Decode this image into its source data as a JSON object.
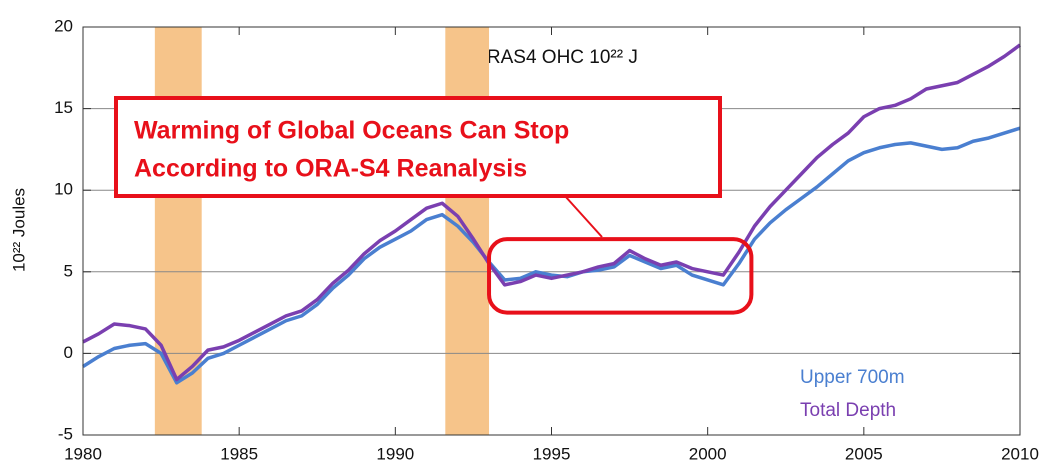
{
  "chart_data": {
    "type": "line",
    "title": "ORAS4  OHC 10²² J",
    "y_label": "10²² Joules",
    "annotation": [
      "Warming of Global Oceans Can Stop",
      "According to ORA-S4 Reanalysis"
    ],
    "x": [
      1980,
      1980.5,
      1981,
      1981.5,
      1982,
      1982.5,
      1983,
      1983.5,
      1984,
      1984.5,
      1985,
      1985.5,
      1986,
      1986.5,
      1987,
      1987.5,
      1988,
      1988.5,
      1989,
      1989.5,
      1990,
      1990.5,
      1991,
      1991.5,
      1992,
      1992.5,
      1993,
      1993.5,
      1994,
      1994.5,
      1995,
      1995.5,
      1996,
      1996.5,
      1997,
      1997.5,
      1998,
      1998.5,
      1999,
      1999.5,
      2000,
      2000.5,
      2001,
      2001.5,
      2002,
      2002.5,
      2003,
      2003.5,
      2004,
      2004.5,
      2005,
      2005.5,
      2006,
      2006.5,
      2007,
      2007.5,
      2008,
      2008.5,
      2009,
      2009.5,
      2010
    ],
    "series": [
      {
        "name": "Upper 700m",
        "color": "#4a7fd0",
        "values": [
          -0.8,
          -0.2,
          0.3,
          0.5,
          0.6,
          0.0,
          -1.8,
          -1.2,
          -0.3,
          0.0,
          0.5,
          1.0,
          1.5,
          2.0,
          2.3,
          3.0,
          4.0,
          4.8,
          5.8,
          6.5,
          7.0,
          7.5,
          8.2,
          8.5,
          7.8,
          6.8,
          5.6,
          4.5,
          4.6,
          5.0,
          4.8,
          4.7,
          5.0,
          5.1,
          5.3,
          6.0,
          5.6,
          5.2,
          5.4,
          4.8,
          4.5,
          4.2,
          5.5,
          7.0,
          8.0,
          8.8,
          9.5,
          10.2,
          11.0,
          11.8,
          12.3,
          12.6,
          12.8,
          12.9,
          12.7,
          12.5,
          12.6,
          13.0,
          13.2,
          13.5,
          13.8
        ]
      },
      {
        "name": "Total Depth",
        "color": "#7a3fb0",
        "values": [
          0.7,
          1.2,
          1.8,
          1.7,
          1.5,
          0.5,
          -1.6,
          -0.8,
          0.2,
          0.4,
          0.8,
          1.3,
          1.8,
          2.3,
          2.6,
          3.3,
          4.3,
          5.1,
          6.1,
          6.9,
          7.5,
          8.2,
          8.9,
          9.2,
          8.4,
          7.0,
          5.5,
          4.2,
          4.4,
          4.8,
          4.6,
          4.8,
          5.0,
          5.3,
          5.5,
          6.3,
          5.8,
          5.4,
          5.6,
          5.2,
          5.0,
          4.8,
          6.2,
          7.8,
          9.0,
          10.0,
          11.0,
          12.0,
          12.8,
          13.5,
          14.5,
          15.0,
          15.2,
          15.6,
          16.2,
          16.4,
          16.6,
          17.1,
          17.6,
          18.2,
          18.9
        ]
      }
    ],
    "shaded_periods": [
      [
        1982.3,
        1983.8
      ],
      [
        1991.6,
        1993.0
      ]
    ],
    "highlight": {
      "x": [
        1993.0,
        2001.4
      ],
      "y": [
        2.5,
        7.0
      ]
    },
    "xlim": [
      1980,
      2010
    ],
    "xticks": [
      1980,
      1985,
      1990,
      1995,
      2000,
      2005,
      2010
    ],
    "ylim": [
      -5,
      20
    ],
    "yticks": [
      -5,
      0,
      5,
      10,
      15,
      20
    ],
    "grid": true
  }
}
